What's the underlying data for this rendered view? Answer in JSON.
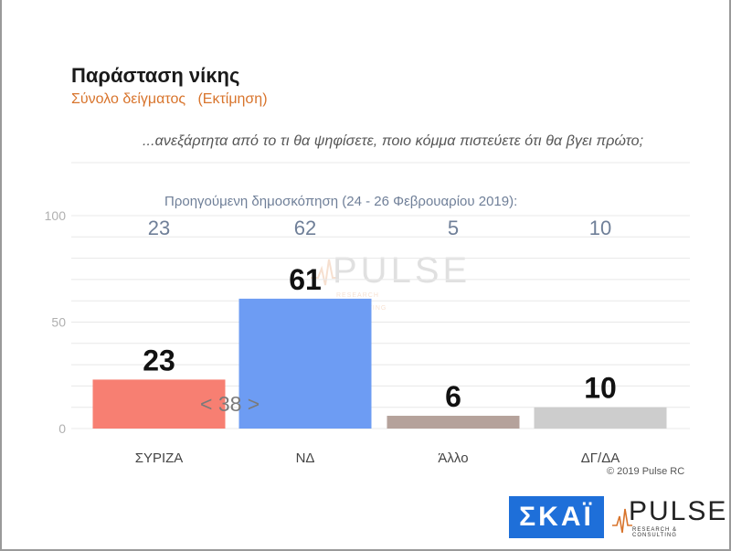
{
  "header": {
    "title": "Παράσταση νίκης",
    "subtitle": "Σύνολο δείγματος   (Εκτίμηση)",
    "question": "...ανεξάρτητα από το τι θα ψηφίσετε, ποιο κόμμα πιστεύετε ότι θα βγει πρώτο;"
  },
  "previous": {
    "label": "Προηγούμενη δημοσκόπηση (24 - 26 Φεβρουαρίου 2019):",
    "values": [
      "23",
      "62",
      "5",
      "10"
    ]
  },
  "gap_label": "< 38 >",
  "footer": {
    "copyright": "© 2019 Pulse RC",
    "skai_logo_text": "ΣΚΑΪ",
    "pulse_logo_text": "PULSE",
    "pulse_logo_tag": "RESEARCH & CONSULTING"
  },
  "watermark": {
    "text": "PULSE",
    "tag": "RESEARCH & CONSULTING"
  },
  "colors": {
    "ΣΥΡΙΖΑ": "#f77f72",
    "ΝΔ": "#6d9cf3",
    "Άλλο": "#b5a29b",
    "ΔΓ/ΔΑ": "#cdcdcd",
    "gridline": "#e8e8e8",
    "axis_label": "#b0b0b0"
  },
  "chart_data": {
    "type": "bar",
    "categories": [
      "ΣΥΡΙΖΑ",
      "ΝΔ",
      "Άλλο",
      "ΔΓ/ΔΑ"
    ],
    "values": [
      23,
      61,
      6,
      10
    ],
    "data_labels": [
      "23",
      "61",
      "6",
      "10"
    ],
    "ylim": [
      0,
      100
    ],
    "yticks": [
      "0",
      "50",
      "100"
    ],
    "grid": true,
    "legend": "none"
  }
}
